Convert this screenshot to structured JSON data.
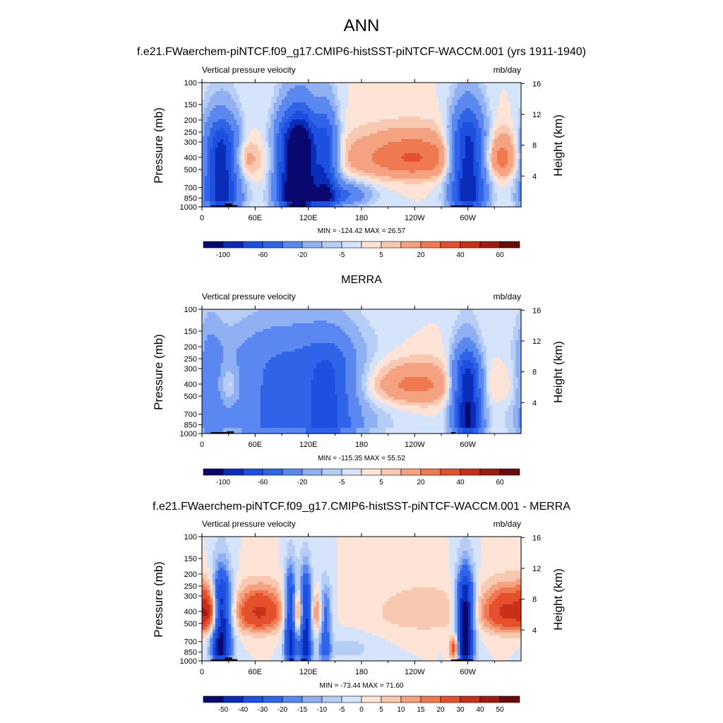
{
  "figure": {
    "main_title": "ANN"
  },
  "chart_data": [
    {
      "type": "heatmap",
      "title": "f.e21.FWaerchem-piNTCF.f09_g17.CMIP6-histSST-piNTCF-WACCM.001 (yrs 1911-1940)",
      "left_label": "Vertical pressure velocity",
      "units": "mb/day",
      "ylabel": "Pressure (mb)",
      "ylabel_right": "Height (km)",
      "stats": "MIN = -124.42  MAX =  26.57",
      "x_ticks": [
        "0",
        "60E",
        "120E",
        "180",
        "120W",
        "60W"
      ],
      "x_tick_lon": [
        0,
        60,
        120,
        180,
        240,
        300
      ],
      "xlim": [
        0,
        360
      ],
      "pressure_ticks": [
        "100",
        "150",
        "200",
        "250",
        "300",
        "400",
        "500",
        "700",
        "850",
        "1000"
      ],
      "ylim_pressure": [
        1000,
        100
      ],
      "height_ticks": [
        "4",
        "8",
        "12",
        "16"
      ],
      "colorbar_labels": [
        "-100",
        "-60",
        "-20",
        "-5",
        "5",
        "20",
        "40",
        "60"
      ],
      "colorbar_levels": [
        -120,
        -100,
        -80,
        -60,
        -40,
        -20,
        -10,
        -5,
        0,
        5,
        10,
        20,
        30,
        40,
        50,
        60
      ],
      "colorbar_label_positions": [
        1,
        3,
        5,
        7,
        9,
        11,
        13,
        15
      ],
      "features": [
        {
          "lon": 22,
          "amp": -95,
          "width": 14,
          "top": 210,
          "shape": "column"
        },
        {
          "lon": 100,
          "amp": -105,
          "width": 12,
          "top": 190,
          "shape": "column"
        },
        {
          "lon": 115,
          "amp": -95,
          "width": 9,
          "top": 190,
          "shape": "column"
        },
        {
          "lon": 138,
          "amp": -80,
          "width": 10,
          "top": 180,
          "shape": "column"
        },
        {
          "lon": 155,
          "amp": -45,
          "width": 22,
          "top": 300,
          "shape": "low"
        },
        {
          "lon": 45,
          "amp": 22,
          "width": 10,
          "top": 250,
          "shape": "mid"
        },
        {
          "lon": 243,
          "amp": 26,
          "width": 42,
          "top": 180,
          "shape": "mid"
        },
        {
          "lon": 340,
          "amp": 24,
          "width": 16,
          "top": 190,
          "shape": "mid"
        },
        {
          "lon": 300,
          "amp": -100,
          "width": 13,
          "top": 180,
          "shape": "column"
        },
        {
          "lon": 78,
          "amp": 6,
          "width": 25,
          "top": 300,
          "shape": "mid"
        },
        {
          "lon": 185,
          "amp": 8,
          "width": 60,
          "top": 120,
          "shape": "mid"
        }
      ],
      "topography": [
        {
          "lon0": 10,
          "lon1": 28,
          "p": 975
        },
        {
          "lon0": 26,
          "lon1": 34,
          "p": 940
        },
        {
          "lon0": 34,
          "lon1": 40,
          "p": 970
        },
        {
          "lon0": 99,
          "lon1": 103,
          "p": 960
        },
        {
          "lon0": 112,
          "lon1": 118,
          "p": 965
        },
        {
          "lon0": 281,
          "lon1": 306,
          "p": 975
        }
      ]
    },
    {
      "type": "heatmap",
      "title": "MERRA",
      "left_label": "Vertical pressure velocity",
      "units": "mb/day",
      "ylabel": "Pressure (mb)",
      "ylabel_right": "Height (km)",
      "stats": "MIN = -115.35  MAX =  55.52",
      "x_ticks": [
        "0",
        "60E",
        "120E",
        "180",
        "120W",
        "60W"
      ],
      "x_tick_lon": [
        0,
        60,
        120,
        180,
        240,
        300
      ],
      "xlim": [
        0,
        360
      ],
      "pressure_ticks": [
        "100",
        "150",
        "200",
        "250",
        "300",
        "400",
        "500",
        "700",
        "850",
        "1000"
      ],
      "ylim_pressure": [
        1000,
        100
      ],
      "height_ticks": [
        "4",
        "8",
        "12",
        "16"
      ],
      "colorbar_labels": [
        "-100",
        "-60",
        "-20",
        "-5",
        "5",
        "20",
        "40",
        "60"
      ],
      "colorbar_levels": [
        -120,
        -100,
        -80,
        -60,
        -40,
        -20,
        -10,
        -5,
        0,
        5,
        10,
        20,
        30,
        40,
        50,
        60
      ],
      "colorbar_label_positions": [
        1,
        3,
        5,
        7,
        9,
        11,
        13,
        15
      ],
      "features": [
        {
          "lon": 100,
          "amp": -48,
          "width": 55,
          "top": 150,
          "shape": "column"
        },
        {
          "lon": 145,
          "amp": -35,
          "width": 18,
          "top": 190,
          "shape": "column"
        },
        {
          "lon": 10,
          "amp": -25,
          "width": 10,
          "top": 150,
          "shape": "column"
        },
        {
          "lon": 30,
          "amp": 18,
          "width": 10,
          "top": 250,
          "shape": "mid"
        },
        {
          "lon": 240,
          "amp": 22,
          "width": 40,
          "top": 220,
          "shape": "mid"
        },
        {
          "lon": 295,
          "amp": -65,
          "width": 10,
          "top": 220,
          "shape": "column"
        },
        {
          "lon": 305,
          "amp": -55,
          "width": 9,
          "top": 250,
          "shape": "column"
        },
        {
          "lon": 345,
          "amp": 7,
          "width": 30,
          "top": 150,
          "shape": "mid"
        },
        {
          "lon": 200,
          "amp": 5,
          "width": 40,
          "top": 110,
          "shape": "mid"
        }
      ],
      "topography": [
        {
          "lon0": 10,
          "lon1": 28,
          "p": 975
        },
        {
          "lon0": 28,
          "lon1": 36,
          "p": 960
        },
        {
          "lon0": 281,
          "lon1": 286,
          "p": 975
        }
      ]
    },
    {
      "type": "heatmap",
      "title": "f.e21.FWaerchem-piNTCF.f09_g17.CMIP6-histSST-piNTCF-WACCM.001 - MERRA",
      "left_label": "Vertical pressure velocity",
      "units": "mb/day",
      "ylabel": "Pressure (mb)",
      "ylabel_right": "Height (km)",
      "stats": "MIN = -73.44  MAX =  71.60",
      "x_ticks": [
        "0",
        "60E",
        "120E",
        "180",
        "120W",
        "60W"
      ],
      "x_tick_lon": [
        0,
        60,
        120,
        180,
        240,
        300
      ],
      "xlim": [
        0,
        360
      ],
      "pressure_ticks": [
        "100",
        "150",
        "200",
        "250",
        "300",
        "400",
        "500",
        "700",
        "850",
        "1000"
      ],
      "ylim_pressure": [
        1000,
        100
      ],
      "height_ticks": [
        "4",
        "8",
        "12",
        "16"
      ],
      "colorbar_labels": [
        "-50",
        "-40",
        "-30",
        "-20",
        "-15",
        "-10",
        "-5",
        "0",
        "5",
        "10",
        "15",
        "20",
        "30",
        "40",
        "50"
      ],
      "colorbar_levels": [
        -55,
        -50,
        -40,
        -30,
        -20,
        -15,
        -10,
        -5,
        0,
        5,
        10,
        15,
        20,
        30,
        40,
        50
      ],
      "colorbar_label_positions": [
        1,
        2,
        3,
        4,
        5,
        6,
        7,
        8,
        9,
        10,
        11,
        12,
        13,
        14,
        15
      ],
      "features": [
        {
          "lon": 8,
          "amp": 28,
          "width": 8,
          "top": 200,
          "shape": "mid"
        },
        {
          "lon": 22,
          "amp": -55,
          "width": 8,
          "top": 200,
          "shape": "column"
        },
        {
          "lon": 65,
          "amp": 32,
          "width": 20,
          "top": 200,
          "shape": "mid"
        },
        {
          "lon": 100,
          "amp": -45,
          "width": 5,
          "top": 200,
          "shape": "column"
        },
        {
          "lon": 108,
          "amp": 30,
          "width": 4,
          "top": 230,
          "shape": "mid"
        },
        {
          "lon": 117,
          "amp": -45,
          "width": 5,
          "top": 200,
          "shape": "column"
        },
        {
          "lon": 130,
          "amp": 20,
          "width": 5,
          "top": 250,
          "shape": "mid"
        },
        {
          "lon": 139,
          "amp": -25,
          "width": 5,
          "top": 250,
          "shape": "column"
        },
        {
          "lon": 165,
          "amp": -8,
          "width": 20,
          "top": 500,
          "shape": "low"
        },
        {
          "lon": 250,
          "amp": 10,
          "width": 40,
          "top": 150,
          "shape": "mid"
        },
        {
          "lon": 285,
          "amp": 35,
          "width": 4,
          "top": 500,
          "shape": "low"
        },
        {
          "lon": 297,
          "amp": -60,
          "width": 7,
          "top": 200,
          "shape": "column"
        },
        {
          "lon": 345,
          "amp": 32,
          "width": 20,
          "top": 180,
          "shape": "mid"
        }
      ],
      "topography": [
        {
          "lon0": 10,
          "lon1": 28,
          "p": 975
        },
        {
          "lon0": 26,
          "lon1": 34,
          "p": 940
        },
        {
          "lon0": 34,
          "lon1": 40,
          "p": 970
        },
        {
          "lon0": 99,
          "lon1": 103,
          "p": 960
        },
        {
          "lon0": 112,
          "lon1": 118,
          "p": 965
        },
        {
          "lon0": 281,
          "lon1": 306,
          "p": 975
        }
      ]
    }
  ],
  "colors": {
    "diverging": [
      "#08086e",
      "#0b2cb8",
      "#1d4fe0",
      "#2f64e8",
      "#5a88f0",
      "#8fb0f2",
      "#b6cdf5",
      "#d5e4fa",
      "#fde4d6",
      "#f9c8b1",
      "#f4a281",
      "#ef7a52",
      "#e5502c",
      "#c8301a",
      "#9f1a10",
      "#6b0b08"
    ],
    "topography": "#000000"
  }
}
